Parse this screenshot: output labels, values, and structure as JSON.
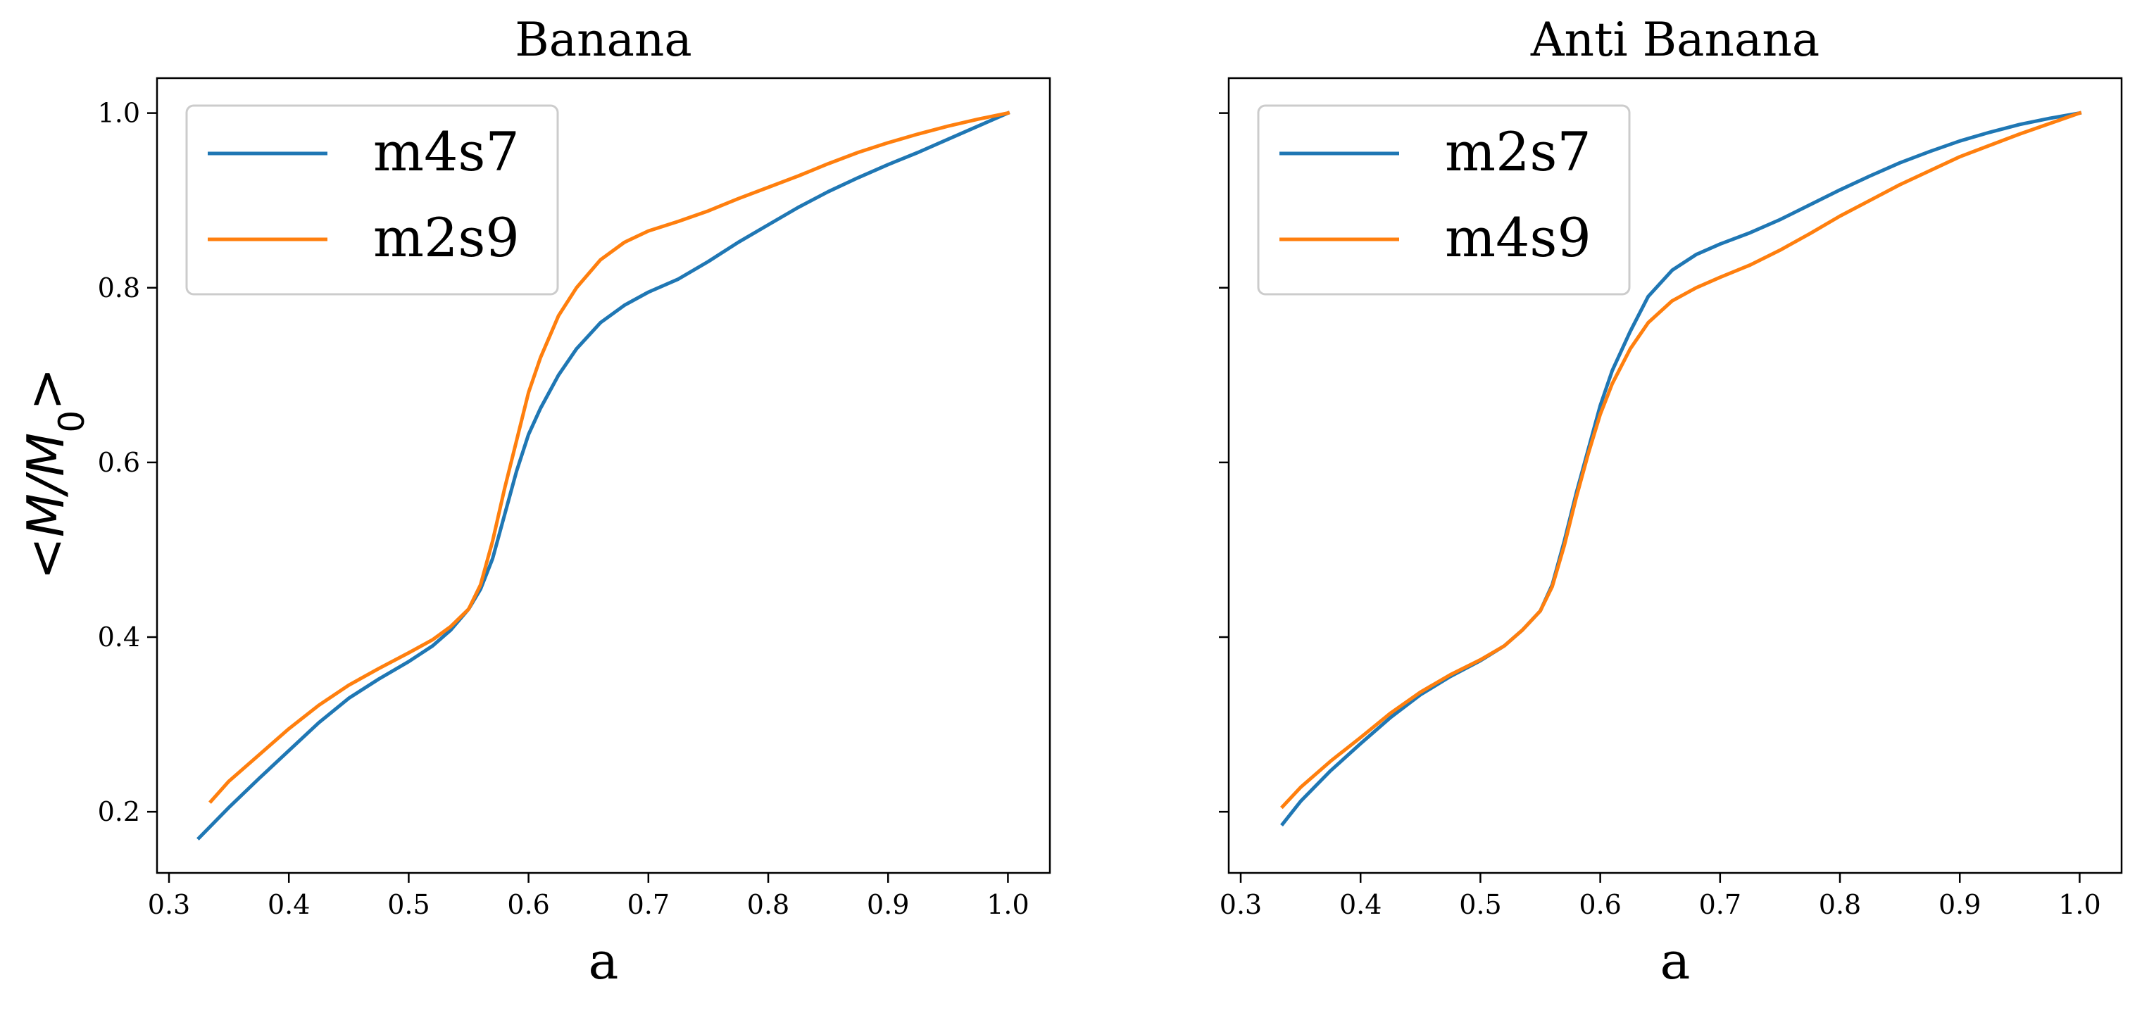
{
  "colors": {
    "series1": "#1f77b4",
    "series2": "#ff7f0e",
    "axis": "#000000",
    "legend_edge": "#cccccc"
  },
  "chart_data": [
    {
      "type": "line",
      "title": "Banana",
      "xlabel": "a",
      "ylabel": "<M/M0>",
      "xlim": [
        0.29,
        1.035
      ],
      "ylim": [
        0.13,
        1.04
      ],
      "xticks": [
        0.3,
        0.4,
        0.5,
        0.6,
        0.7,
        0.8,
        0.9,
        1.0
      ],
      "xtick_labels": [
        "0.3",
        "0.4",
        "0.5",
        "0.6",
        "0.7",
        "0.8",
        "0.9",
        "1.0"
      ],
      "yticks": [
        0.2,
        0.4,
        0.6,
        0.8,
        1.0
      ],
      "ytick_labels": [
        "0.2",
        "0.4",
        "0.6",
        "0.8",
        "1.0"
      ],
      "grid": false,
      "legend_position": "upper-left",
      "series": [
        {
          "name": "m4s7",
          "color": "#1f77b4",
          "x": [
            0.325,
            0.35,
            0.375,
            0.4,
            0.425,
            0.45,
            0.475,
            0.5,
            0.52,
            0.535,
            0.55,
            0.56,
            0.57,
            0.58,
            0.59,
            0.6,
            0.61,
            0.625,
            0.64,
            0.66,
            0.68,
            0.7,
            0.725,
            0.75,
            0.775,
            0.8,
            0.825,
            0.85,
            0.875,
            0.9,
            0.925,
            0.95,
            0.975,
            1.0
          ],
          "y": [
            0.17,
            0.205,
            0.238,
            0.27,
            0.302,
            0.33,
            0.352,
            0.372,
            0.39,
            0.408,
            0.432,
            0.455,
            0.49,
            0.54,
            0.59,
            0.632,
            0.662,
            0.7,
            0.73,
            0.76,
            0.78,
            0.795,
            0.81,
            0.83,
            0.852,
            0.872,
            0.892,
            0.91,
            0.926,
            0.941,
            0.955,
            0.97,
            0.985,
            1.0
          ]
        },
        {
          "name": "m2s9",
          "color": "#ff7f0e",
          "x": [
            0.335,
            0.35,
            0.375,
            0.4,
            0.425,
            0.45,
            0.475,
            0.5,
            0.52,
            0.535,
            0.55,
            0.56,
            0.57,
            0.58,
            0.59,
            0.6,
            0.61,
            0.625,
            0.64,
            0.66,
            0.68,
            0.7,
            0.725,
            0.75,
            0.775,
            0.8,
            0.825,
            0.85,
            0.875,
            0.9,
            0.925,
            0.95,
            0.975,
            1.0
          ],
          "y": [
            0.212,
            0.235,
            0.265,
            0.295,
            0.322,
            0.345,
            0.364,
            0.382,
            0.397,
            0.412,
            0.432,
            0.46,
            0.51,
            0.57,
            0.625,
            0.68,
            0.72,
            0.768,
            0.8,
            0.832,
            0.852,
            0.865,
            0.876,
            0.888,
            0.902,
            0.915,
            0.928,
            0.942,
            0.955,
            0.966,
            0.976,
            0.985,
            0.993,
            1.0
          ]
        }
      ]
    },
    {
      "type": "line",
      "title": "Anti Banana",
      "xlabel": "a",
      "ylabel": "",
      "xlim": [
        0.29,
        1.035
      ],
      "ylim": [
        0.13,
        1.04
      ],
      "xticks": [
        0.3,
        0.4,
        0.5,
        0.6,
        0.7,
        0.8,
        0.9,
        1.0
      ],
      "xtick_labels": [
        "0.3",
        "0.4",
        "0.5",
        "0.6",
        "0.7",
        "0.8",
        "0.9",
        "1.0"
      ],
      "yticks": [
        0.2,
        0.4,
        0.6,
        0.8,
        1.0
      ],
      "ytick_labels": [],
      "grid": false,
      "legend_position": "upper-left",
      "series": [
        {
          "name": "m2s7",
          "color": "#1f77b4",
          "x": [
            0.335,
            0.35,
            0.375,
            0.4,
            0.425,
            0.45,
            0.475,
            0.5,
            0.52,
            0.535,
            0.55,
            0.56,
            0.57,
            0.58,
            0.59,
            0.6,
            0.61,
            0.625,
            0.64,
            0.66,
            0.68,
            0.7,
            0.725,
            0.75,
            0.775,
            0.8,
            0.825,
            0.85,
            0.875,
            0.9,
            0.925,
            0.95,
            0.975,
            1.0
          ],
          "y": [
            0.186,
            0.212,
            0.247,
            0.278,
            0.308,
            0.334,
            0.355,
            0.373,
            0.39,
            0.408,
            0.43,
            0.46,
            0.51,
            0.565,
            0.615,
            0.665,
            0.705,
            0.75,
            0.79,
            0.82,
            0.838,
            0.85,
            0.863,
            0.878,
            0.895,
            0.912,
            0.928,
            0.943,
            0.956,
            0.968,
            0.978,
            0.987,
            0.994,
            1.0
          ]
        },
        {
          "name": "m4s9",
          "color": "#ff7f0e",
          "x": [
            0.335,
            0.35,
            0.375,
            0.4,
            0.425,
            0.45,
            0.475,
            0.5,
            0.52,
            0.535,
            0.55,
            0.56,
            0.57,
            0.58,
            0.59,
            0.6,
            0.61,
            0.625,
            0.64,
            0.66,
            0.68,
            0.7,
            0.725,
            0.75,
            0.775,
            0.8,
            0.825,
            0.85,
            0.875,
            0.9,
            0.925,
            0.95,
            0.975,
            1.0
          ],
          "y": [
            0.206,
            0.228,
            0.258,
            0.285,
            0.313,
            0.337,
            0.357,
            0.374,
            0.39,
            0.408,
            0.43,
            0.458,
            0.505,
            0.56,
            0.61,
            0.655,
            0.69,
            0.73,
            0.76,
            0.785,
            0.8,
            0.812,
            0.826,
            0.843,
            0.862,
            0.882,
            0.9,
            0.918,
            0.934,
            0.95,
            0.963,
            0.976,
            0.988,
            1.0
          ]
        }
      ]
    }
  ]
}
